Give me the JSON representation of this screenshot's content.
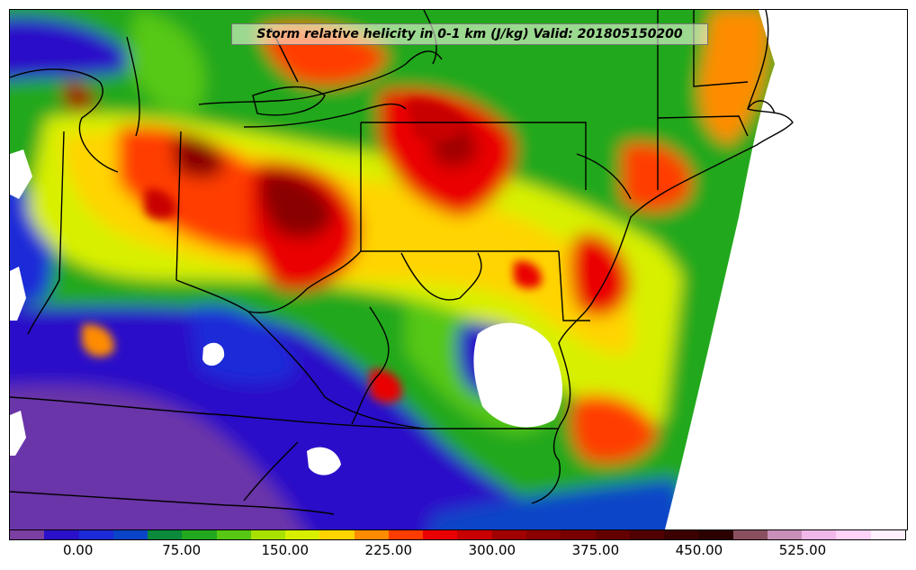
{
  "title": "Storm relative helicity in 0-1 km (J/kg) Valid: 201805150200",
  "colorbar": {
    "colors": [
      "#7a3fa0",
      "#2a10c8",
      "#1c2ad8",
      "#0a44c8",
      "#0a8a3a",
      "#22a81e",
      "#56c814",
      "#a8e000",
      "#d8f000",
      "#ffd400",
      "#ff8c00",
      "#ff3c00",
      "#ea0000",
      "#c80000",
      "#a00000",
      "#8a0000",
      "#780000",
      "#640000",
      "#500000",
      "#3c0000",
      "#2c0000",
      "#8a5060",
      "#c890b8",
      "#f0b8e8",
      "#ffd4f8",
      "#fff0fc"
    ],
    "tick_labels": [
      "0.00",
      "75.00",
      "150.00",
      "225.00",
      "300.00",
      "375.00",
      "450.00",
      "525.00"
    ],
    "tick_values": [
      0,
      75,
      150,
      225,
      300,
      375,
      450,
      525
    ],
    "range": [
      -50,
      600
    ]
  }
}
